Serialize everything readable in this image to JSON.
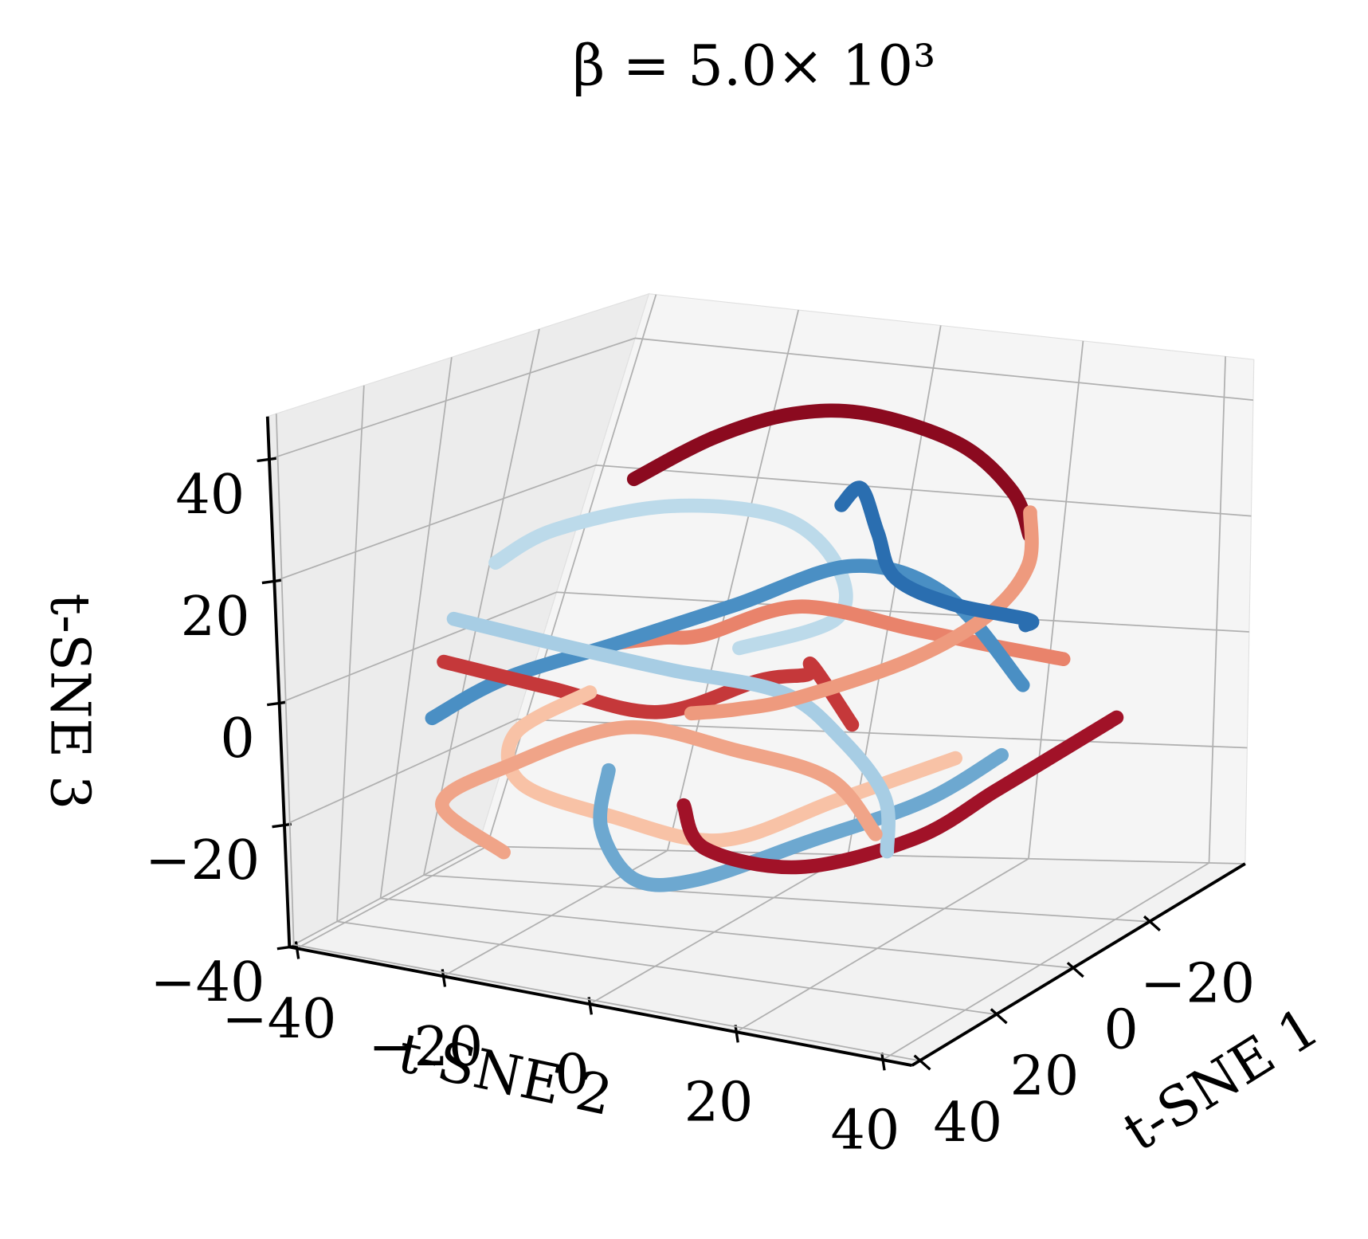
{
  "chart_data": {
    "type": "line3d",
    "title": "β = 5.0× 10³",
    "xlabel": "t-SNE 1",
    "ylabel": "t-SNE 2",
    "zlabel": "t-SNE 3",
    "xlim": [
      -45,
      42
    ],
    "ylim": [
      -41,
      44
    ],
    "zlim": [
      -40,
      47
    ],
    "xticks": [
      {
        "value": -20,
        "label": "−20"
      },
      0,
      20,
      40
    ],
    "yticks": [
      {
        "value": -40,
        "label": "−40"
      },
      {
        "value": -20,
        "label": "−20"
      },
      0,
      20,
      40
    ],
    "zticks": [
      {
        "value": -40,
        "label": "−40"
      },
      {
        "value": -20,
        "label": "−20"
      },
      0,
      20,
      40
    ],
    "grid": true,
    "series": [
      {
        "color": "#8b0a1f",
        "x": [
          10,
          0,
          -10,
          -20,
          -25,
          -20,
          -15
        ],
        "y": [
          -10,
          -5,
          0,
          5,
          15,
          25,
          30
        ],
        "z": [
          35,
          40,
          42,
          40,
          35,
          30,
          25
        ]
      },
      {
        "color": "#bcdaea",
        "x": [
          15,
          10,
          0,
          -10,
          -5,
          5,
          10
        ],
        "y": [
          -25,
          -20,
          -10,
          0,
          10,
          15,
          5
        ],
        "z": [
          20,
          25,
          28,
          25,
          20,
          15,
          10
        ]
      },
      {
        "color": "#e9836b",
        "x": [
          0,
          10,
          20,
          15,
          5,
          -5,
          -15
        ],
        "y": [
          -15,
          -5,
          5,
          15,
          25,
          30,
          35
        ],
        "z": [
          5,
          10,
          15,
          20,
          15,
          10,
          5
        ]
      },
      {
        "color": "#4a8fc4",
        "x": [
          20,
          10,
          0,
          -10,
          -20,
          -25,
          -15
        ],
        "y": [
          -30,
          -25,
          -15,
          -5,
          5,
          15,
          30
        ],
        "z": [
          -5,
          0,
          5,
          10,
          15,
          10,
          0
        ]
      },
      {
        "color": "#c5383a",
        "x": [
          5,
          -5,
          -15,
          -20,
          -10,
          0,
          10
        ],
        "y": [
          -35,
          -25,
          -15,
          -5,
          5,
          10,
          20
        ],
        "z": [
          0,
          -5,
          -10,
          -5,
          0,
          5,
          0
        ]
      },
      {
        "color": "#f8c2a6",
        "x": [
          -20,
          -10,
          0,
          10,
          15,
          5,
          -5
        ],
        "y": [
          20,
          10,
          0,
          -10,
          -20,
          -25,
          -20
        ],
        "z": [
          -15,
          -20,
          -25,
          -20,
          -15,
          -10,
          -5
        ]
      },
      {
        "color": "#6da8d0",
        "x": [
          -10,
          0,
          10,
          20,
          15,
          0,
          -15
        ],
        "y": [
          30,
          25,
          15,
          5,
          -5,
          -15,
          -20
        ],
        "z": [
          -10,
          -15,
          -20,
          -25,
          -28,
          -25,
          -20
        ]
      },
      {
        "color": "#a11228",
        "x": [
          0,
          5,
          0,
          -10,
          -20,
          -25,
          -30
        ],
        "y": [
          -5,
          0,
          10,
          20,
          25,
          30,
          35
        ],
        "z": [
          -20,
          -25,
          -28,
          -25,
          -20,
          -15,
          -10
        ]
      },
      {
        "color": "#a7cde4",
        "x": [
          15,
          5,
          -5,
          -15,
          -10,
          0,
          10
        ],
        "y": [
          -30,
          -20,
          -10,
          0,
          10,
          20,
          25
        ],
        "z": [
          10,
          5,
          0,
          -5,
          -10,
          -15,
          -20
        ]
      },
      {
        "color": "#ee9a7e",
        "x": [
          -25,
          -15,
          -5,
          5,
          15,
          10,
          0
        ],
        "y": [
          25,
          30,
          30,
          25,
          15,
          5,
          -5
        ],
        "z": [
          25,
          20,
          15,
          10,
          5,
          0,
          -5
        ]
      },
      {
        "color": "#2a6eb0",
        "x": [
          -5,
          0,
          5,
          10,
          5,
          -5,
          -15
        ],
        "y": [
          10,
          15,
          20,
          25,
          30,
          35,
          30
        ],
        "z": [
          30,
          35,
          30,
          25,
          20,
          15,
          10
        ]
      },
      {
        "color": "#f0a488",
        "x": [
          20,
          15,
          5,
          -5,
          -15,
          -20,
          -10
        ],
        "y": [
          -20,
          -30,
          -25,
          -15,
          -5,
          5,
          15
        ],
        "z": [
          -25,
          -20,
          -15,
          -10,
          -15,
          -20,
          -25
        ]
      }
    ]
  }
}
